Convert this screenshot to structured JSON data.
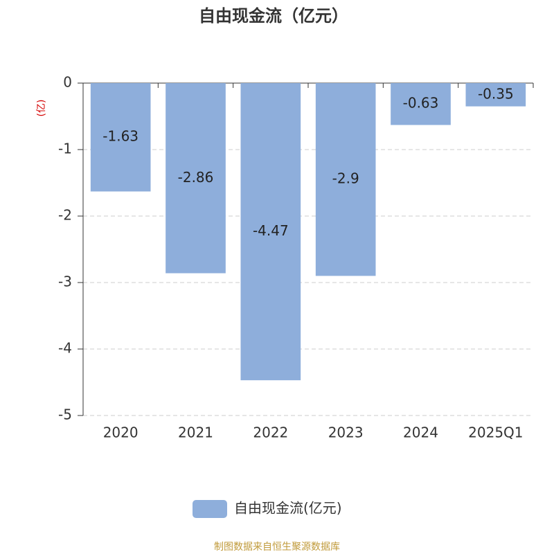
{
  "chart_data": {
    "type": "bar",
    "title": "自由现金流（亿元）",
    "y_label": "(亿)",
    "categories": [
      "2020",
      "2021",
      "2022",
      "2023",
      "2024",
      "2025Q1"
    ],
    "series": [
      {
        "name": "自由现金流(亿元)",
        "color": "#8eaedb",
        "values": [
          -1.63,
          -2.86,
          -4.47,
          -2.9,
          -0.63,
          -0.35
        ]
      }
    ],
    "ylim": [
      -5,
      0
    ],
    "yticks": [
      0,
      -1,
      -2,
      -3,
      -4,
      -5
    ],
    "grid": true,
    "legend": "bottom",
    "source": "制图数据来自恒生聚源数据库"
  }
}
